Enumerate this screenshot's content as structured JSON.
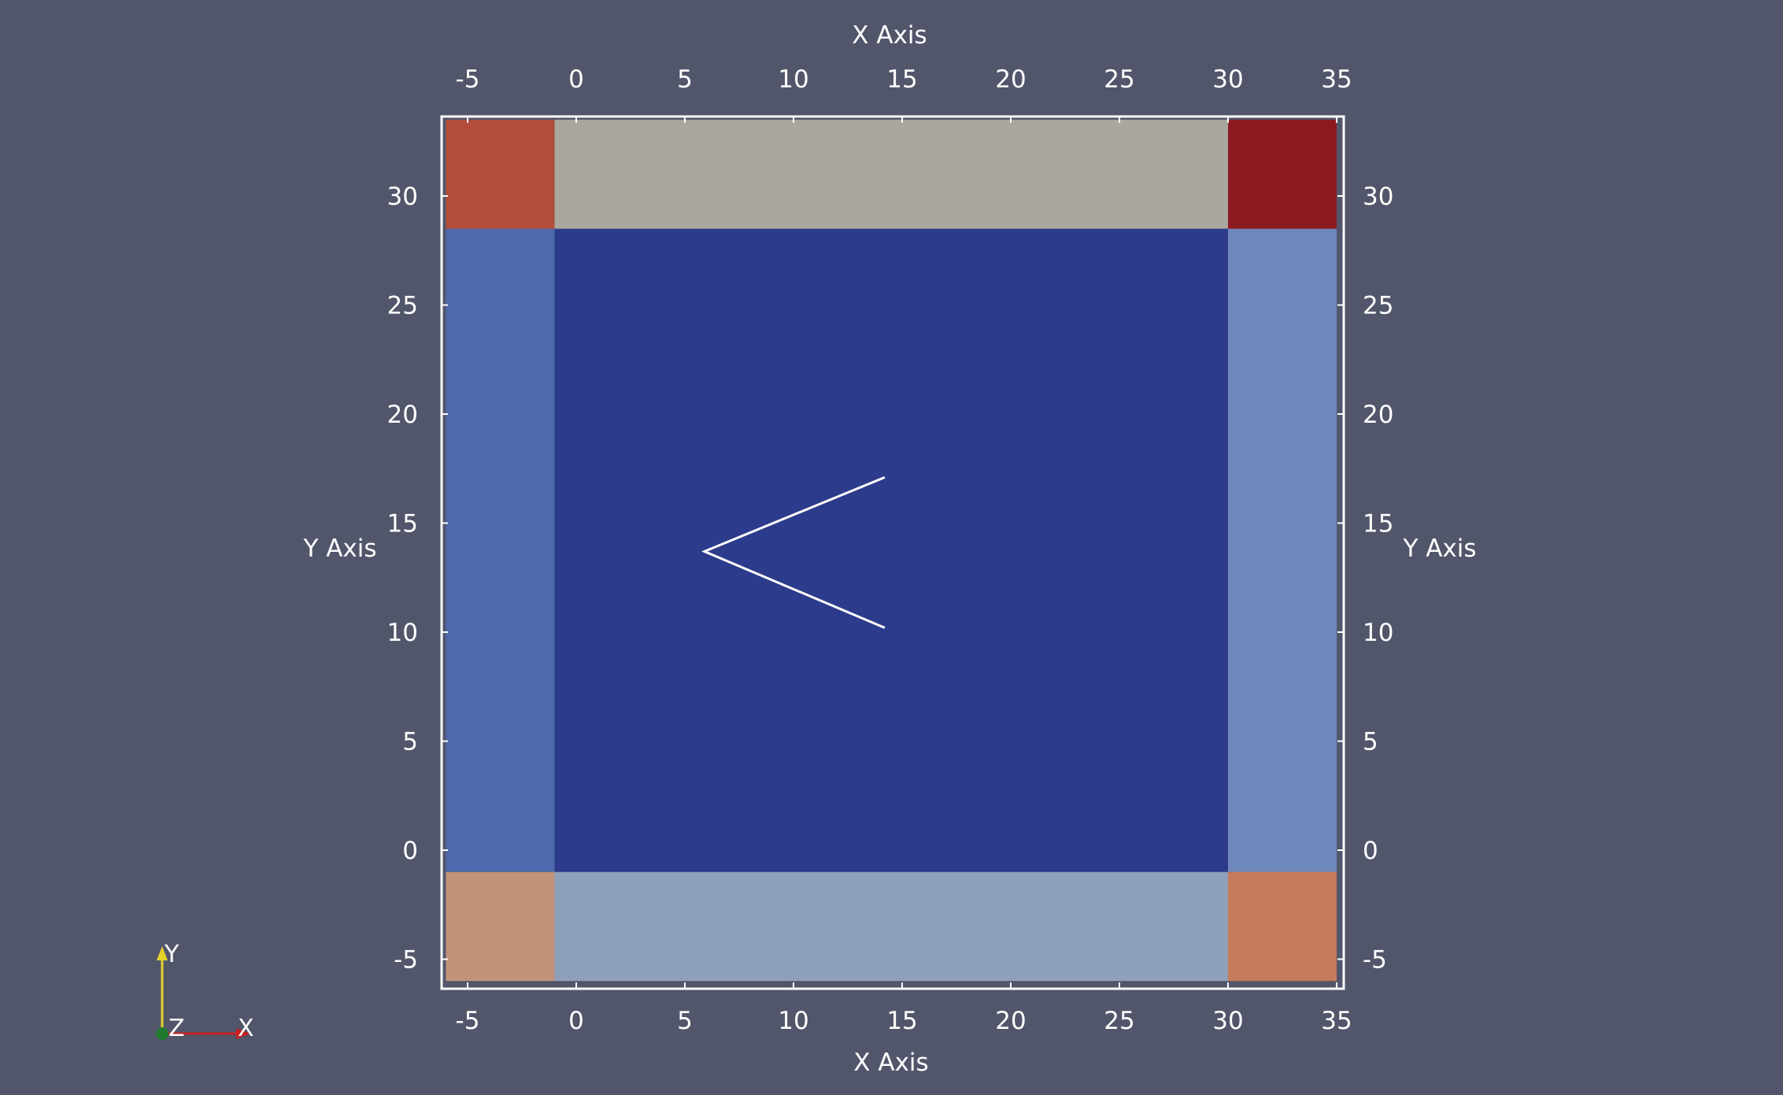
{
  "viewport": {
    "background": "#52566b",
    "x_axis_title_top": "X Axis",
    "x_axis_title_bottom": "X Axis",
    "y_axis_title_left": "Y Axis",
    "y_axis_title_right": "Y Axis",
    "x_tick_labels": [
      "-5",
      "0",
      "5",
      "10",
      "15",
      "20",
      "25",
      "30",
      "35"
    ],
    "y_tick_labels": [
      "30",
      "25",
      "20",
      "15",
      "10",
      "5",
      "0",
      "-5"
    ],
    "orientation_widget": {
      "y_label": "Y",
      "z_label": "Z",
      "x_label": "X"
    }
  },
  "scene": {
    "regions": [
      {
        "name": "center-region",
        "x0": -1,
        "x1": 30,
        "y0": -1,
        "y1": 28.5,
        "color": "#2d3b8c"
      },
      {
        "name": "left-edge-region",
        "x0": -6,
        "x1": -1,
        "y0": -1,
        "y1": 28.5,
        "color": "#4e69ac"
      },
      {
        "name": "right-edge-region",
        "x0": 30,
        "x1": 35,
        "y0": -1,
        "y1": 28.5,
        "color": "#6f88bb"
      },
      {
        "name": "top-edge-region",
        "x0": -1,
        "x1": 30,
        "y0": 28.5,
        "y1": 33.5,
        "color": "#aaa7a1"
      },
      {
        "name": "bottom-edge-region",
        "x0": -1,
        "x1": 30,
        "y0": -6,
        "y1": -1,
        "color": "#8fa0ba"
      },
      {
        "name": "top-left-corner",
        "x0": -6,
        "x1": -1,
        "y0": 28.5,
        "y1": 33.5,
        "color": "#b14d3a"
      },
      {
        "name": "top-right-corner",
        "x0": 30,
        "x1": 35,
        "y0": 28.5,
        "y1": 33.5,
        "color": "#8c1b20"
      },
      {
        "name": "bottom-left-corner",
        "x0": -6,
        "x1": -1,
        "y0": -6,
        "y1": -1,
        "color": "#c29279"
      },
      {
        "name": "bottom-right-corner",
        "x0": 30,
        "x1": 35,
        "y0": -6,
        "y1": -1,
        "color": "#c87a5c"
      }
    ],
    "polyline": [
      [
        14.2,
        17.1
      ],
      [
        5.9,
        13.7
      ],
      [
        14.2,
        10.2
      ]
    ],
    "polyline_color": "#ffffff"
  }
}
